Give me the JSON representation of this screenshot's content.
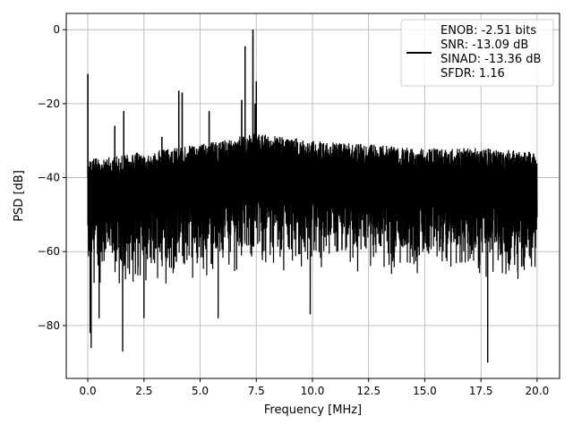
{
  "chart_data": {
    "type": "line",
    "title": "",
    "xlabel": "Frequency [MHz]",
    "ylabel": "PSD [dB]",
    "xlim": [
      -0.96,
      21.0
    ],
    "ylim": [
      -94.3,
      4.4
    ],
    "xticks": [
      0.0,
      2.5,
      5.0,
      7.5,
      10.0,
      12.5,
      15.0,
      17.5,
      20.0
    ],
    "xtick_labels": [
      "0.0",
      "2.5",
      "5.0",
      "7.5",
      "10.0",
      "12.5",
      "15.0",
      "17.5",
      "20.0"
    ],
    "yticks": [
      0,
      -20,
      -40,
      -60,
      -80
    ],
    "ytick_labels": [
      "0",
      "−20",
      "−40",
      "−60",
      "−80"
    ],
    "grid": true,
    "legend_placement": "upper-right",
    "legend": [
      "ENOB: -2.51 bits",
      "SNR: -13.09 dB",
      "SINAD: -13.36 dB",
      "SFDR: 1.16"
    ],
    "line_color": "#000000",
    "x_range_data": [
      0,
      20
    ],
    "noise_floor": {
      "upper_envelope": [
        [
          0,
          -35
        ],
        [
          2.5,
          -33
        ],
        [
          5,
          -31
        ],
        [
          7.5,
          -28
        ],
        [
          10,
          -30
        ],
        [
          12.5,
          -31
        ],
        [
          15,
          -32
        ],
        [
          17.5,
          -32
        ],
        [
          20,
          -33
        ]
      ],
      "lower_envelope": [
        [
          0,
          -70
        ],
        [
          2.5,
          -70
        ],
        [
          5,
          -68
        ],
        [
          7.5,
          -66
        ],
        [
          10,
          -66
        ],
        [
          12.5,
          -67
        ],
        [
          15,
          -67
        ],
        [
          17.5,
          -68
        ],
        [
          20,
          -68
        ]
      ]
    },
    "peaks": [
      [
        0.0,
        -12
      ],
      [
        1.2,
        -26
      ],
      [
        1.6,
        -22
      ],
      [
        3.3,
        -29
      ],
      [
        4.05,
        -16.5
      ],
      [
        4.2,
        -17
      ],
      [
        5.4,
        -22
      ],
      [
        6.85,
        -19
      ],
      [
        7.0,
        -4.5
      ],
      [
        7.35,
        0
      ],
      [
        7.45,
        -20
      ],
      [
        7.5,
        -14
      ]
    ],
    "dips": [
      [
        0.1,
        -82
      ],
      [
        0.15,
        -86
      ],
      [
        1.55,
        -87
      ],
      [
        0.5,
        -78
      ],
      [
        2.5,
        -78
      ],
      [
        5.8,
        -78
      ],
      [
        9.9,
        -77
      ],
      [
        17.8,
        -90
      ]
    ]
  }
}
